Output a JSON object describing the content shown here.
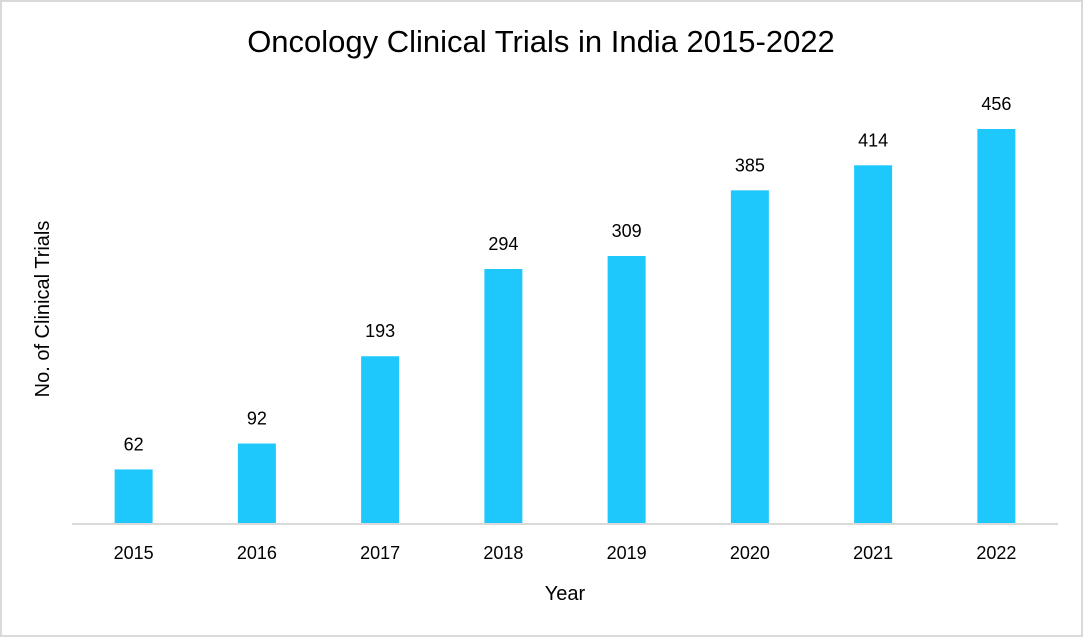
{
  "chart_data": {
    "type": "bar",
    "title": "Oncology Clinical Trials in India 2015-2022",
    "xlabel": "Year",
    "ylabel": "No. of Clinical Trials",
    "categories": [
      "2015",
      "2016",
      "2017",
      "2018",
      "2019",
      "2020",
      "2021",
      "2022"
    ],
    "values": [
      62,
      92,
      193,
      294,
      309,
      385,
      414,
      456
    ],
    "ylim": [
      0,
      456
    ],
    "grid": false,
    "data_labels": true,
    "colors": {
      "bar": "#1EC8FC",
      "axis": "#d9d9d9"
    }
  }
}
